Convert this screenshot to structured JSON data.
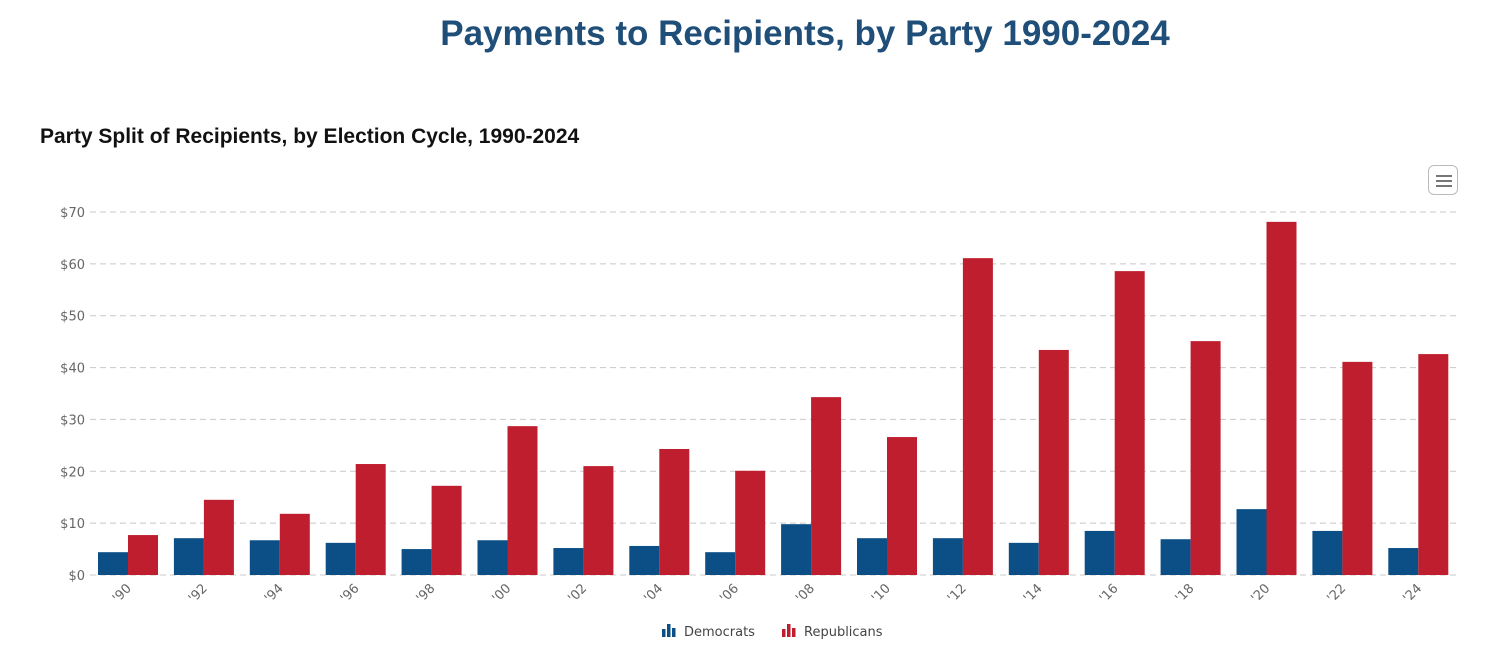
{
  "title": "Payments to Recipients, by Party 1990-2024",
  "chart_data": {
    "type": "bar",
    "title": "Party Split of Recipients, by Election Cycle, 1990-2024",
    "xlabel": "",
    "ylabel": "",
    "ylim": [
      0,
      70
    ],
    "yticks": [
      "$0",
      "$10",
      "$20",
      "$30",
      "$40",
      "$50",
      "$60",
      "$70"
    ],
    "grid": true,
    "legend": "bottom-center",
    "categories": [
      "'90",
      "'92",
      "'94",
      "'96",
      "'98",
      "'00",
      "'02",
      "'04",
      "'06",
      "'08",
      "'10",
      "'12",
      "'14",
      "'16",
      "'18",
      "'20",
      "'22",
      "'24"
    ],
    "series": [
      {
        "name": "Democrats",
        "color": "#0b4f86",
        "values": [
          4.4,
          7.1,
          6.7,
          6.2,
          5.0,
          6.7,
          5.2,
          5.6,
          4.4,
          9.8,
          7.1,
          7.1,
          6.2,
          8.5,
          6.9,
          12.7,
          8.5,
          5.2
        ]
      },
      {
        "name": "Republicans",
        "color": "#be1e2d",
        "values": [
          7.7,
          14.5,
          11.8,
          21.4,
          17.2,
          28.7,
          21.0,
          24.3,
          20.1,
          34.3,
          26.6,
          61.1,
          43.4,
          58.6,
          45.1,
          68.1,
          41.1,
          42.6
        ]
      }
    ]
  },
  "menu_icon": "hamburger-menu-icon"
}
